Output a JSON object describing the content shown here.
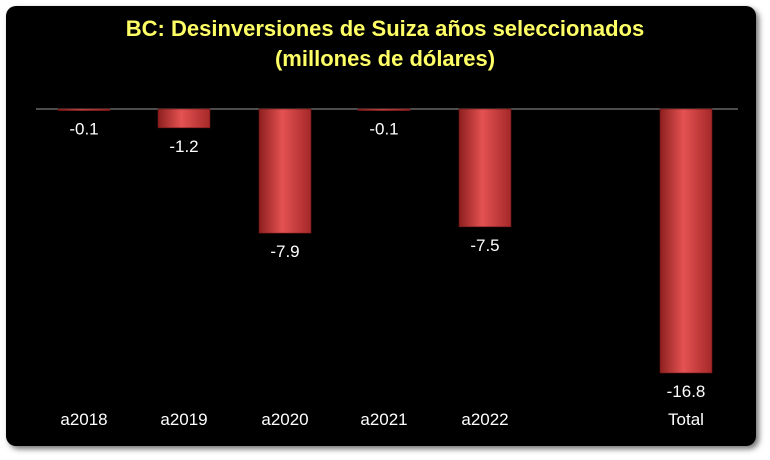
{
  "chart_data": {
    "type": "bar",
    "title": "BC: Desinversiones de Suiza años seleccionados",
    "subtitle": "(millones de dólares)",
    "categories": [
      "a2018",
      "a2019",
      "a2020",
      "a2021",
      "a2022",
      "Total"
    ],
    "values": [
      -0.1,
      -1.2,
      -7.9,
      -0.1,
      -7.5,
      -16.8
    ],
    "value_labels": [
      "-0.1",
      "-1.2",
      "-7.9",
      "-0.1",
      "-7.5",
      "-16.8"
    ],
    "ylim": [
      -16.8,
      0
    ],
    "grid": false,
    "legend": "none",
    "colors": {
      "bar": "#D8403F",
      "background": "#000000",
      "title": "#FFFF66",
      "text": "#FFFFFF",
      "axis": "#9a9a9a"
    }
  }
}
